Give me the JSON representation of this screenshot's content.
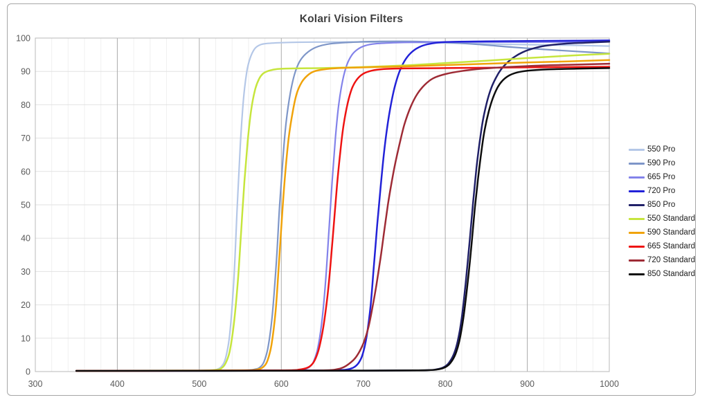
{
  "chart_data": {
    "type": "line",
    "title": "Kolari Vision Filters",
    "xlabel": "",
    "ylabel": "",
    "xlim": [
      300,
      1000
    ],
    "ylim": [
      0,
      100
    ],
    "x_ticks": [
      300,
      400,
      500,
      600,
      700,
      800,
      900,
      1000
    ],
    "y_ticks": [
      0,
      10,
      20,
      30,
      40,
      50,
      60,
      70,
      80,
      90,
      100
    ],
    "x_minor_step": 20,
    "grid": {
      "minor_vertical_color": "#f0f0f0",
      "horizontal_color": "#e2e2e2",
      "major_vertical_color": "#ababab",
      "border_color": "#b8b8b8"
    },
    "legend_position": "right",
    "axis_label_color": "#595959",
    "series": [
      {
        "name": "550 Pro",
        "color": "#b4c7e7",
        "width": 2.2,
        "points": [
          [
            350,
            0.2
          ],
          [
            420,
            0.2
          ],
          [
            470,
            0.3
          ],
          [
            500,
            0.3
          ],
          [
            515,
            0.4
          ],
          [
            522,
            0.7
          ],
          [
            527,
            1.5
          ],
          [
            532,
            4
          ],
          [
            537,
            11
          ],
          [
            542,
            27
          ],
          [
            546,
            48
          ],
          [
            550,
            68
          ],
          [
            554,
            82
          ],
          [
            558,
            90
          ],
          [
            562,
            94
          ],
          [
            567,
            96.6
          ],
          [
            572,
            97.7
          ],
          [
            580,
            98.3
          ],
          [
            600,
            98.6
          ],
          [
            640,
            98.8
          ],
          [
            700,
            98.8
          ],
          [
            760,
            98.7
          ],
          [
            820,
            98.4
          ],
          [
            880,
            98.1
          ],
          [
            940,
            97.9
          ],
          [
            1000,
            97.6
          ]
        ]
      },
      {
        "name": "590 Pro",
        "color": "#7e96c8",
        "width": 2.2,
        "points": [
          [
            350,
            0.2
          ],
          [
            500,
            0.3
          ],
          [
            555,
            0.4
          ],
          [
            568,
            0.7
          ],
          [
            574,
            1.3
          ],
          [
            579,
            3
          ],
          [
            584,
            7.5
          ],
          [
            589,
            17
          ],
          [
            594,
            33
          ],
          [
            598,
            50
          ],
          [
            602,
            64
          ],
          [
            606,
            75
          ],
          [
            611,
            83.5
          ],
          [
            616,
            89
          ],
          [
            622,
            92.8
          ],
          [
            630,
            95.3
          ],
          [
            642,
            97.2
          ],
          [
            660,
            98.3
          ],
          [
            690,
            98.8
          ],
          [
            720,
            99
          ],
          [
            760,
            99
          ],
          [
            800,
            98.7
          ],
          [
            840,
            98.1
          ],
          [
            880,
            97.3
          ],
          [
            920,
            96.6
          ],
          [
            960,
            96
          ],
          [
            1000,
            95.4
          ]
        ]
      },
      {
        "name": "665 Pro",
        "color": "#8282ea",
        "width": 2.2,
        "points": [
          [
            350,
            0.2
          ],
          [
            550,
            0.3
          ],
          [
            615,
            0.4
          ],
          [
            628,
            0.7
          ],
          [
            634,
            1.3
          ],
          [
            639,
            2.8
          ],
          [
            644,
            6.5
          ],
          [
            649,
            14
          ],
          [
            654,
            27
          ],
          [
            658,
            42
          ],
          [
            662,
            57
          ],
          [
            666,
            70
          ],
          [
            670,
            80
          ],
          [
            675,
            87.5
          ],
          [
            680,
            92
          ],
          [
            686,
            94.9
          ],
          [
            693,
            96.6
          ],
          [
            702,
            97.7
          ],
          [
            715,
            98.3
          ],
          [
            740,
            98.6
          ],
          [
            780,
            98.8
          ],
          [
            850,
            98.8
          ],
          [
            925,
            98.8
          ],
          [
            1000,
            98.9
          ]
        ]
      },
      {
        "name": "720 Pro",
        "color": "#2222d8",
        "width": 2.5,
        "points": [
          [
            350,
            0.2
          ],
          [
            600,
            0.3
          ],
          [
            665,
            0.4
          ],
          [
            680,
            0.6
          ],
          [
            688,
            1.2
          ],
          [
            694,
            2.5
          ],
          [
            699,
            5
          ],
          [
            704,
            10.5
          ],
          [
            709,
            20
          ],
          [
            713,
            32
          ],
          [
            717,
            44
          ],
          [
            721,
            55
          ],
          [
            725,
            65
          ],
          [
            729,
            73
          ],
          [
            734,
            80.5
          ],
          [
            739,
            86
          ],
          [
            745,
            90.5
          ],
          [
            752,
            93.8
          ],
          [
            760,
            96
          ],
          [
            770,
            97.5
          ],
          [
            782,
            98.3
          ],
          [
            800,
            98.8
          ],
          [
            850,
            99
          ],
          [
            900,
            99.1
          ],
          [
            950,
            99.2
          ],
          [
            1000,
            99.3
          ]
        ]
      },
      {
        "name": "850 Pro",
        "color": "#202068",
        "width": 2.5,
        "points": [
          [
            350,
            0.2
          ],
          [
            700,
            0.3
          ],
          [
            775,
            0.4
          ],
          [
            790,
            0.7
          ],
          [
            798,
            1.3
          ],
          [
            804,
            2.5
          ],
          [
            810,
            5
          ],
          [
            815,
            9
          ],
          [
            820,
            16
          ],
          [
            825,
            27
          ],
          [
            830,
            40
          ],
          [
            834,
            51
          ],
          [
            838,
            61
          ],
          [
            842,
            69
          ],
          [
            846,
            75.5
          ],
          [
            851,
            81
          ],
          [
            856,
            85
          ],
          [
            862,
            88.2
          ],
          [
            868,
            90.6
          ],
          [
            875,
            92.5
          ],
          [
            884,
            94.3
          ],
          [
            894,
            95.7
          ],
          [
            906,
            96.8
          ],
          [
            922,
            97.7
          ],
          [
            945,
            98.3
          ],
          [
            970,
            98.6
          ],
          [
            1000,
            98.9
          ]
        ]
      },
      {
        "name": "550 Standard",
        "color": "#c6e53d",
        "width": 2.5,
        "points": [
          [
            350,
            0.2
          ],
          [
            450,
            0.3
          ],
          [
            500,
            0.3
          ],
          [
            520,
            0.5
          ],
          [
            527,
            1
          ],
          [
            532,
            2.5
          ],
          [
            537,
            6
          ],
          [
            542,
            14
          ],
          [
            547,
            27
          ],
          [
            551,
            42
          ],
          [
            555,
            57
          ],
          [
            559,
            69
          ],
          [
            563,
            78
          ],
          [
            568,
            84.5
          ],
          [
            573,
            87.8
          ],
          [
            578,
            89.4
          ],
          [
            585,
            90.2
          ],
          [
            595,
            90.7
          ],
          [
            615,
            90.9
          ],
          [
            650,
            91
          ],
          [
            700,
            91.3
          ],
          [
            750,
            91.8
          ],
          [
            800,
            92.5
          ],
          [
            850,
            93.2
          ],
          [
            900,
            94
          ],
          [
            950,
            94.7
          ],
          [
            1000,
            95.3
          ]
        ]
      },
      {
        "name": "590 Standard",
        "color": "#f0a30a",
        "width": 2.5,
        "points": [
          [
            350,
            0.2
          ],
          [
            500,
            0.3
          ],
          [
            560,
            0.4
          ],
          [
            572,
            0.7
          ],
          [
            578,
            1.4
          ],
          [
            583,
            3.2
          ],
          [
            588,
            8
          ],
          [
            593,
            18
          ],
          [
            597,
            32
          ],
          [
            601,
            47
          ],
          [
            605,
            60
          ],
          [
            609,
            70
          ],
          [
            614,
            78
          ],
          [
            619,
            83.5
          ],
          [
            625,
            86.8
          ],
          [
            632,
            88.8
          ],
          [
            640,
            90
          ],
          [
            652,
            90.6
          ],
          [
            670,
            91
          ],
          [
            700,
            91.2
          ],
          [
            750,
            91.5
          ],
          [
            800,
            91.9
          ],
          [
            850,
            92.3
          ],
          [
            900,
            92.7
          ],
          [
            950,
            93
          ],
          [
            1000,
            93.4
          ]
        ]
      },
      {
        "name": "665 Standard",
        "color": "#ee1312",
        "width": 2.5,
        "points": [
          [
            350,
            0.2
          ],
          [
            550,
            0.3
          ],
          [
            610,
            0.4
          ],
          [
            622,
            0.6
          ],
          [
            630,
            1
          ],
          [
            636,
            1.8
          ],
          [
            641,
            3.5
          ],
          [
            646,
            7
          ],
          [
            651,
            13
          ],
          [
            656,
            22
          ],
          [
            660,
            32
          ],
          [
            664,
            44
          ],
          [
            668,
            56
          ],
          [
            672,
            66
          ],
          [
            676,
            74
          ],
          [
            681,
            80.5
          ],
          [
            686,
            84.8
          ],
          [
            692,
            87.5
          ],
          [
            700,
            89.3
          ],
          [
            710,
            90.2
          ],
          [
            725,
            90.7
          ],
          [
            750,
            90.9
          ],
          [
            800,
            91
          ],
          [
            900,
            91.2
          ],
          [
            1000,
            91.4
          ]
        ]
      },
      {
        "name": "720 Standard",
        "color": "#9e2b35",
        "width": 2.5,
        "points": [
          [
            350,
            0.2
          ],
          [
            600,
            0.3
          ],
          [
            655,
            0.4
          ],
          [
            668,
            0.7
          ],
          [
            676,
            1.3
          ],
          [
            683,
            2.4
          ],
          [
            690,
            4
          ],
          [
            696,
            6.3
          ],
          [
            701,
            9
          ],
          [
            706,
            13
          ],
          [
            711,
            19
          ],
          [
            716,
            26
          ],
          [
            721,
            34
          ],
          [
            726,
            43
          ],
          [
            730,
            50
          ],
          [
            734,
            56
          ],
          [
            739,
            62.5
          ],
          [
            744,
            68
          ],
          [
            750,
            74
          ],
          [
            758,
            79.5
          ],
          [
            766,
            83.3
          ],
          [
            775,
            86
          ],
          [
            785,
            87.9
          ],
          [
            800,
            89.2
          ],
          [
            820,
            90.1
          ],
          [
            845,
            90.8
          ],
          [
            875,
            91.3
          ],
          [
            910,
            91.7
          ],
          [
            950,
            92
          ],
          [
            1000,
            92.3
          ]
        ]
      },
      {
        "name": "850 Standard",
        "color": "#0d0d0d",
        "width": 2.5,
        "points": [
          [
            350,
            0.2
          ],
          [
            700,
            0.3
          ],
          [
            775,
            0.4
          ],
          [
            792,
            0.7
          ],
          [
            800,
            1.3
          ],
          [
            806,
            2.5
          ],
          [
            812,
            5
          ],
          [
            817,
            9
          ],
          [
            822,
            16
          ],
          [
            827,
            26
          ],
          [
            832,
            38
          ],
          [
            836,
            49
          ],
          [
            840,
            58
          ],
          [
            844,
            66
          ],
          [
            848,
            72.5
          ],
          [
            853,
            78
          ],
          [
            858,
            82
          ],
          [
            864,
            85.3
          ],
          [
            870,
            87.3
          ],
          [
            878,
            88.8
          ],
          [
            888,
            89.7
          ],
          [
            900,
            90.2
          ],
          [
            925,
            90.6
          ],
          [
            960,
            90.8
          ],
          [
            1000,
            91
          ]
        ]
      }
    ]
  }
}
